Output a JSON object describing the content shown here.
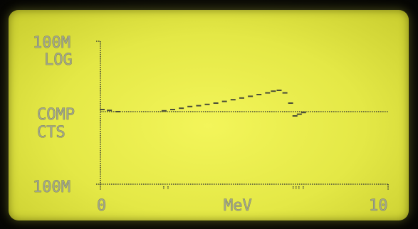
{
  "display": {
    "y_top_label": "100M",
    "scale_label": "LOG",
    "mode_label": "COMP",
    "counts_label": "CTS",
    "y_bottom_label": "100M",
    "x_min_label": "0",
    "x_unit_label": "MeV",
    "x_max_label": "10"
  },
  "colors": {
    "lcd_background": "#e9ec48",
    "pixel": "#4a4d38",
    "glyph": "#a2a78a"
  },
  "chart_data": {
    "type": "scatter",
    "title": "",
    "xlabel": "MeV",
    "ylabel": "",
    "xlim": [
      0,
      10
    ],
    "ylim": [
      -1,
      1
    ],
    "baseline": 0,
    "grid": false,
    "x_tick_labels": [
      "0",
      "10"
    ],
    "y_tick_labels": [
      "100M",
      "100M"
    ],
    "series": [
      {
        "values": [
          [
            0.05,
            0.05
          ],
          [
            0.3,
            0.03
          ],
          [
            0.6,
            0.0
          ],
          [
            2.2,
            0.02
          ],
          [
            2.5,
            0.05
          ],
          [
            2.8,
            0.08
          ],
          [
            3.1,
            0.12
          ],
          [
            3.4,
            0.14
          ],
          [
            3.7,
            0.17
          ],
          [
            4.0,
            0.2
          ],
          [
            4.3,
            0.24
          ],
          [
            4.6,
            0.28
          ],
          [
            4.9,
            0.32
          ],
          [
            5.2,
            0.36
          ],
          [
            5.5,
            0.4
          ],
          [
            5.8,
            0.44
          ],
          [
            6.0,
            0.48
          ],
          [
            6.2,
            0.5
          ],
          [
            6.4,
            0.44
          ],
          [
            6.6,
            0.2
          ],
          [
            6.75,
            -0.1
          ],
          [
            6.9,
            -0.06
          ],
          [
            7.05,
            -0.02
          ]
        ]
      }
    ]
  }
}
